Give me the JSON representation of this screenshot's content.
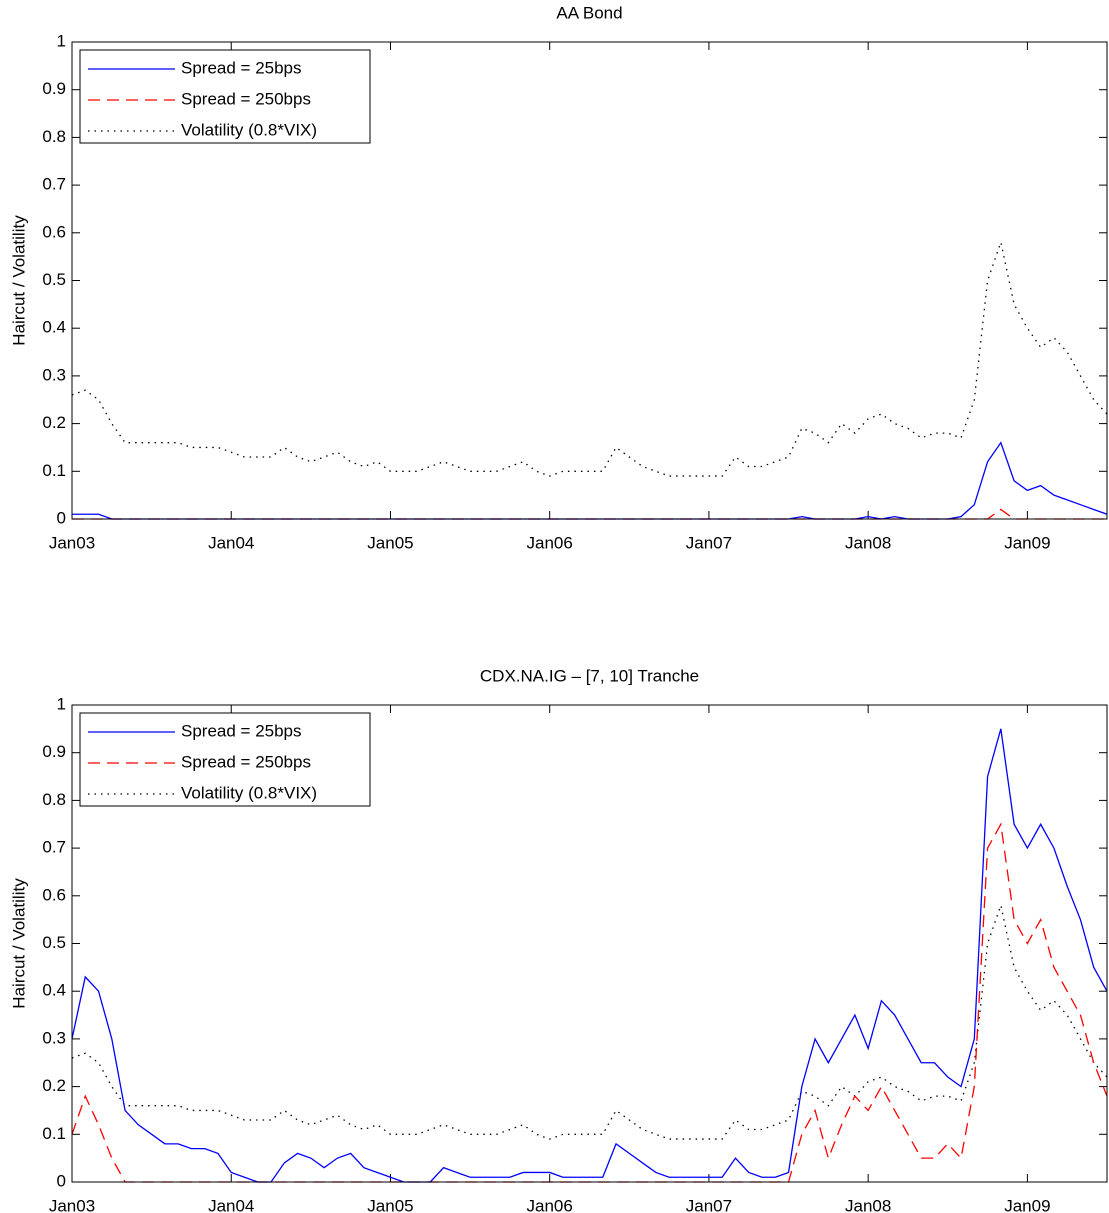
{
  "chart_data": [
    {
      "type": "line",
      "title": "AA Bond",
      "y_label": "Haircut / Volatility",
      "legend": "upper left",
      "grid": false,
      "xlim": [
        "2003-01",
        "2009-07"
      ],
      "ylim": [
        0,
        1
      ],
      "xticks": [
        {
          "value": "2003-01",
          "label": "Jan03"
        },
        {
          "value": "2004-01",
          "label": "Jan04"
        },
        {
          "value": "2005-01",
          "label": "Jan05"
        },
        {
          "value": "2006-01",
          "label": "Jan06"
        },
        {
          "value": "2007-01",
          "label": "Jan07"
        },
        {
          "value": "2008-01",
          "label": "Jan08"
        },
        {
          "value": "2009-01",
          "label": "Jan09"
        }
      ],
      "yticks": [
        0,
        0.1,
        0.2,
        0.3,
        0.4,
        0.5,
        0.6,
        0.7,
        0.8,
        0.9,
        1
      ],
      "x": [
        "2003-01",
        "2003-02",
        "2003-03",
        "2003-04",
        "2003-05",
        "2003-06",
        "2003-07",
        "2003-08",
        "2003-09",
        "2003-10",
        "2003-11",
        "2003-12",
        "2004-01",
        "2004-02",
        "2004-03",
        "2004-04",
        "2004-05",
        "2004-06",
        "2004-07",
        "2004-08",
        "2004-09",
        "2004-10",
        "2004-11",
        "2004-12",
        "2005-01",
        "2005-02",
        "2005-03",
        "2005-04",
        "2005-05",
        "2005-06",
        "2005-07",
        "2005-08",
        "2005-09",
        "2005-10",
        "2005-11",
        "2005-12",
        "2006-01",
        "2006-02",
        "2006-03",
        "2006-04",
        "2006-05",
        "2006-06",
        "2006-07",
        "2006-08",
        "2006-09",
        "2006-10",
        "2006-11",
        "2006-12",
        "2007-01",
        "2007-02",
        "2007-03",
        "2007-04",
        "2007-05",
        "2007-06",
        "2007-07",
        "2007-08",
        "2007-09",
        "2007-10",
        "2007-11",
        "2007-12",
        "2008-01",
        "2008-02",
        "2008-03",
        "2008-04",
        "2008-05",
        "2008-06",
        "2008-07",
        "2008-08",
        "2008-09",
        "2008-10",
        "2008-11",
        "2008-12",
        "2009-01",
        "2009-02",
        "2009-03",
        "2009-04",
        "2009-05",
        "2009-06",
        "2009-07"
      ],
      "series": [
        {
          "name": "Spread = 25bps",
          "color": "#0000ff",
          "style": "solid",
          "values": [
            0.01,
            0.01,
            0.01,
            0,
            0,
            0,
            0,
            0,
            0,
            0,
            0,
            0,
            0,
            0,
            0,
            0,
            0,
            0,
            0,
            0,
            0,
            0,
            0,
            0,
            0,
            0,
            0,
            0,
            0,
            0,
            0,
            0,
            0,
            0,
            0,
            0,
            0,
            0,
            0,
            0,
            0,
            0,
            0,
            0,
            0,
            0,
            0,
            0,
            0,
            0,
            0,
            0,
            0,
            0,
            0,
            0.005,
            0,
            0,
            0,
            0,
            0.005,
            0,
            0.005,
            0,
            0,
            0,
            0,
            0.005,
            0.03,
            0.12,
            0.16,
            0.08,
            0.06,
            0.07,
            0.05,
            0.04,
            0.03,
            0.02,
            0.01
          ]
        },
        {
          "name": "Spread = 250bps",
          "color": "#ff0000",
          "style": "dashed",
          "values": [
            0,
            0,
            0,
            0,
            0,
            0,
            0,
            0,
            0,
            0,
            0,
            0,
            0,
            0,
            0,
            0,
            0,
            0,
            0,
            0,
            0,
            0,
            0,
            0,
            0,
            0,
            0,
            0,
            0,
            0,
            0,
            0,
            0,
            0,
            0,
            0,
            0,
            0,
            0,
            0,
            0,
            0,
            0,
            0,
            0,
            0,
            0,
            0,
            0,
            0,
            0,
            0,
            0,
            0,
            0,
            0,
            0,
            0,
            0,
            0,
            0,
            0,
            0,
            0,
            0,
            0,
            0,
            0,
            0,
            0,
            0.02,
            0,
            0,
            0,
            0,
            0,
            0,
            0,
            0
          ]
        },
        {
          "name": "Volatility (0.8*VIX)",
          "color": "#000000",
          "style": "dotted",
          "values": [
            0.26,
            0.27,
            0.25,
            0.2,
            0.16,
            0.16,
            0.16,
            0.16,
            0.16,
            0.15,
            0.15,
            0.15,
            0.14,
            0.13,
            0.13,
            0.13,
            0.15,
            0.13,
            0.12,
            0.13,
            0.14,
            0.12,
            0.11,
            0.12,
            0.1,
            0.1,
            0.1,
            0.11,
            0.12,
            0.11,
            0.1,
            0.1,
            0.1,
            0.11,
            0.12,
            0.1,
            0.09,
            0.1,
            0.1,
            0.1,
            0.1,
            0.15,
            0.13,
            0.11,
            0.1,
            0.09,
            0.09,
            0.09,
            0.09,
            0.09,
            0.13,
            0.11,
            0.11,
            0.12,
            0.13,
            0.19,
            0.18,
            0.16,
            0.2,
            0.18,
            0.21,
            0.22,
            0.2,
            0.19,
            0.17,
            0.18,
            0.18,
            0.17,
            0.25,
            0.5,
            0.58,
            0.45,
            0.4,
            0.36,
            0.38,
            0.35,
            0.3,
            0.25,
            0.22
          ]
        }
      ]
    },
    {
      "type": "line",
      "title": "CDX.NA.IG – [7, 10] Tranche",
      "y_label": "Haircut / Volatility",
      "legend": "upper left",
      "grid": false,
      "xlim": [
        "2003-01",
        "2009-07"
      ],
      "ylim": [
        0,
        1
      ],
      "xticks": [
        {
          "value": "2003-01",
          "label": "Jan03"
        },
        {
          "value": "2004-01",
          "label": "Jan04"
        },
        {
          "value": "2005-01",
          "label": "Jan05"
        },
        {
          "value": "2006-01",
          "label": "Jan06"
        },
        {
          "value": "2007-01",
          "label": "Jan07"
        },
        {
          "value": "2008-01",
          "label": "Jan08"
        },
        {
          "value": "2009-01",
          "label": "Jan09"
        }
      ],
      "yticks": [
        0,
        0.1,
        0.2,
        0.3,
        0.4,
        0.5,
        0.6,
        0.7,
        0.8,
        0.9,
        1
      ],
      "x": [
        "2003-01",
        "2003-02",
        "2003-03",
        "2003-04",
        "2003-05",
        "2003-06",
        "2003-07",
        "2003-08",
        "2003-09",
        "2003-10",
        "2003-11",
        "2003-12",
        "2004-01",
        "2004-02",
        "2004-03",
        "2004-04",
        "2004-05",
        "2004-06",
        "2004-07",
        "2004-08",
        "2004-09",
        "2004-10",
        "2004-11",
        "2004-12",
        "2005-01",
        "2005-02",
        "2005-03",
        "2005-04",
        "2005-05",
        "2005-06",
        "2005-07",
        "2005-08",
        "2005-09",
        "2005-10",
        "2005-11",
        "2005-12",
        "2006-01",
        "2006-02",
        "2006-03",
        "2006-04",
        "2006-05",
        "2006-06",
        "2006-07",
        "2006-08",
        "2006-09",
        "2006-10",
        "2006-11",
        "2006-12",
        "2007-01",
        "2007-02",
        "2007-03",
        "2007-04",
        "2007-05",
        "2007-06",
        "2007-07",
        "2007-08",
        "2007-09",
        "2007-10",
        "2007-11",
        "2007-12",
        "2008-01",
        "2008-02",
        "2008-03",
        "2008-04",
        "2008-05",
        "2008-06",
        "2008-07",
        "2008-08",
        "2008-09",
        "2008-10",
        "2008-11",
        "2008-12",
        "2009-01",
        "2009-02",
        "2009-03",
        "2009-04",
        "2009-05",
        "2009-06",
        "2009-07"
      ],
      "series": [
        {
          "name": "Spread = 25bps",
          "color": "#0000ff",
          "style": "solid",
          "values": [
            0.3,
            0.43,
            0.4,
            0.3,
            0.15,
            0.12,
            0.1,
            0.08,
            0.08,
            0.07,
            0.07,
            0.06,
            0.02,
            0.01,
            0,
            0,
            0.04,
            0.06,
            0.05,
            0.03,
            0.05,
            0.06,
            0.03,
            0.02,
            0.01,
            0,
            0,
            0,
            0.03,
            0.02,
            0.01,
            0.01,
            0.01,
            0.01,
            0.02,
            0.02,
            0.02,
            0.01,
            0.01,
            0.01,
            0.01,
            0.08,
            0.06,
            0.04,
            0.02,
            0.01,
            0.01,
            0.01,
            0.01,
            0.01,
            0.05,
            0.02,
            0.01,
            0.01,
            0.02,
            0.2,
            0.3,
            0.25,
            0.3,
            0.35,
            0.28,
            0.38,
            0.35,
            0.3,
            0.25,
            0.25,
            0.22,
            0.2,
            0.3,
            0.85,
            0.95,
            0.75,
            0.7,
            0.75,
            0.7,
            0.62,
            0.55,
            0.45,
            0.4
          ]
        },
        {
          "name": "Spread = 250bps",
          "color": "#ff0000",
          "style": "dashed",
          "values": [
            0.1,
            0.18,
            0.12,
            0.05,
            0,
            0,
            0,
            0,
            0,
            0,
            0,
            0,
            0,
            0,
            0,
            0,
            0,
            0,
            0,
            0,
            0,
            0,
            0,
            0,
            0,
            0,
            0,
            0,
            0,
            0,
            0,
            0,
            0,
            0,
            0,
            0,
            0,
            0,
            0,
            0,
            0,
            0,
            0,
            0,
            0,
            0,
            0,
            0,
            0,
            0,
            0,
            0,
            0,
            0,
            0,
            0.1,
            0.15,
            0.05,
            0.12,
            0.18,
            0.15,
            0.2,
            0.15,
            0.1,
            0.05,
            0.05,
            0.08,
            0.05,
            0.2,
            0.7,
            0.75,
            0.55,
            0.5,
            0.55,
            0.45,
            0.4,
            0.35,
            0.25,
            0.18
          ]
        },
        {
          "name": "Volatility (0.8*VIX)",
          "color": "#000000",
          "style": "dotted",
          "values": [
            0.26,
            0.27,
            0.25,
            0.2,
            0.16,
            0.16,
            0.16,
            0.16,
            0.16,
            0.15,
            0.15,
            0.15,
            0.14,
            0.13,
            0.13,
            0.13,
            0.15,
            0.13,
            0.12,
            0.13,
            0.14,
            0.12,
            0.11,
            0.12,
            0.1,
            0.1,
            0.1,
            0.11,
            0.12,
            0.11,
            0.1,
            0.1,
            0.1,
            0.11,
            0.12,
            0.1,
            0.09,
            0.1,
            0.1,
            0.1,
            0.1,
            0.15,
            0.13,
            0.11,
            0.1,
            0.09,
            0.09,
            0.09,
            0.09,
            0.09,
            0.13,
            0.11,
            0.11,
            0.12,
            0.13,
            0.19,
            0.18,
            0.16,
            0.2,
            0.18,
            0.21,
            0.22,
            0.2,
            0.19,
            0.17,
            0.18,
            0.18,
            0.17,
            0.25,
            0.5,
            0.58,
            0.45,
            0.4,
            0.36,
            0.38,
            0.35,
            0.3,
            0.25,
            0.22
          ]
        }
      ]
    }
  ]
}
